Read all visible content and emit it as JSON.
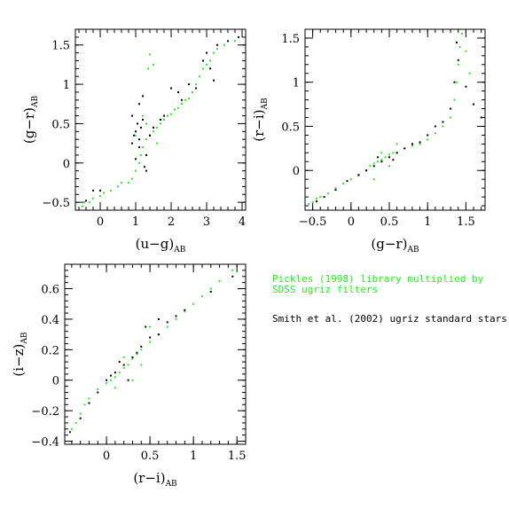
{
  "colors": {
    "pickles": "#22ee22",
    "smith": "#000000"
  },
  "legend": {
    "pickles_line1": "Pickles (1998) library multiplied by",
    "pickles_line2": "SDSS ugriz filters",
    "smith": "Smith et al. (2002) ugriz standard stars"
  },
  "chart_data": [
    {
      "type": "scatter",
      "xlabel": "(u−g)",
      "xlabel_sub": "AB",
      "ylabel": "(g−r)",
      "ylabel_sub": "AB",
      "xlim": [
        -0.7,
        4.1
      ],
      "ylim": [
        -0.6,
        1.7
      ],
      "xticks": [
        0,
        1,
        2,
        3,
        4
      ],
      "xtick_labels": [
        "0",
        "1",
        "2",
        "3",
        "4"
      ],
      "yticks": [
        -0.5,
        0,
        0.5,
        1,
        1.5
      ],
      "ytick_labels": [
        "−0.5",
        "0",
        "0.5",
        "1",
        "1.5"
      ],
      "series": [
        {
          "name": "Pickles (1998) library multiplied by SDSS ugriz filters",
          "color": "#22ee22",
          "points": [
            [
              -0.5,
              -0.55
            ],
            [
              -0.45,
              -0.5
            ],
            [
              -0.3,
              -0.5
            ],
            [
              -0.2,
              -0.45
            ],
            [
              0.0,
              -0.42
            ],
            [
              0.1,
              -0.38
            ],
            [
              0.3,
              -0.35
            ],
            [
              0.5,
              -0.3
            ],
            [
              0.6,
              -0.25
            ],
            [
              0.8,
              -0.25
            ],
            [
              0.9,
              -0.2
            ],
            [
              1.0,
              -0.1
            ],
            [
              1.1,
              0.0
            ],
            [
              1.15,
              0.1
            ],
            [
              1.2,
              0.2
            ],
            [
              1.3,
              0.3
            ],
            [
              1.4,
              0.35
            ],
            [
              1.5,
              0.4
            ],
            [
              1.6,
              0.45
            ],
            [
              1.7,
              0.5
            ],
            [
              1.8,
              0.55
            ],
            [
              1.9,
              0.6
            ],
            [
              2.0,
              0.62
            ],
            [
              2.1,
              0.68
            ],
            [
              2.2,
              0.7
            ],
            [
              2.3,
              0.75
            ],
            [
              2.4,
              0.8
            ],
            [
              2.5,
              0.82
            ],
            [
              2.6,
              0.9
            ],
            [
              2.7,
              1.0
            ],
            [
              2.8,
              1.1
            ],
            [
              2.9,
              1.2
            ],
            [
              3.0,
              1.25
            ],
            [
              3.1,
              1.3
            ],
            [
              3.2,
              1.4
            ],
            [
              3.3,
              1.45
            ],
            [
              3.5,
              1.5
            ],
            [
              3.8,
              1.55
            ],
            [
              1.4,
              1.38
            ],
            [
              1.35,
              1.2
            ],
            [
              1.5,
              1.25
            ],
            [
              1.2,
              0.6
            ],
            [
              1.3,
              0.5
            ],
            [
              1.0,
              0.35
            ],
            [
              1.6,
              0.25
            ]
          ]
        },
        {
          "name": "Smith et al. (2002) ugriz standard stars",
          "color": "#000000",
          "points": [
            [
              -0.4,
              -0.48
            ],
            [
              -0.2,
              -0.35
            ],
            [
              0.0,
              -0.35
            ],
            [
              0.9,
              0.25
            ],
            [
              0.95,
              0.35
            ],
            [
              1.0,
              0.4
            ],
            [
              1.05,
              0.5
            ],
            [
              1.1,
              0.3
            ],
            [
              1.15,
              0.45
            ],
            [
              1.2,
              0.55
            ],
            [
              0.9,
              0.6
            ],
            [
              1.1,
              0.75
            ],
            [
              1.2,
              0.85
            ],
            [
              1.3,
              0.1
            ],
            [
              1.25,
              -0.05
            ],
            [
              1.3,
              -0.1
            ],
            [
              1.1,
              0.2
            ],
            [
              1.4,
              0.35
            ],
            [
              2.0,
              0.95
            ],
            [
              2.2,
              0.9
            ],
            [
              2.5,
              1.0
            ],
            [
              2.7,
              0.95
            ],
            [
              2.9,
              1.3
            ],
            [
              3.0,
              1.4
            ],
            [
              3.1,
              1.2
            ],
            [
              3.3,
              1.5
            ],
            [
              3.6,
              1.55
            ],
            [
              3.9,
              1.6
            ],
            [
              1.0,
              0.05
            ],
            [
              1.5,
              0.45
            ],
            [
              1.7,
              0.55
            ],
            [
              1.8,
              0.6
            ],
            [
              2.3,
              0.8
            ],
            [
              3.2,
              1.05
            ]
          ]
        }
      ]
    },
    {
      "type": "scatter",
      "xlabel": "(g−r)",
      "xlabel_sub": "AB",
      "ylabel": "(r−i)",
      "ylabel_sub": "AB",
      "xlim": [
        -0.6,
        1.75
      ],
      "ylim": [
        -0.45,
        1.6
      ],
      "xticks": [
        -0.5,
        0,
        0.5,
        1,
        1.5
      ],
      "xtick_labels": [
        "−0.5",
        "0",
        "0.5",
        "1",
        "1.5"
      ],
      "yticks": [
        0,
        0.5,
        1,
        1.5
      ],
      "ytick_labels": [
        "0",
        "0.5",
        "1",
        "1.5"
      ],
      "series": [
        {
          "name": "Pickles (1998) library multiplied by SDSS ugriz filters",
          "color": "#22ee22",
          "points": [
            [
              -0.55,
              -0.38
            ],
            [
              -0.5,
              -0.36
            ],
            [
              -0.45,
              -0.32
            ],
            [
              -0.4,
              -0.3
            ],
            [
              -0.3,
              -0.26
            ],
            [
              -0.2,
              -0.2
            ],
            [
              -0.1,
              -0.15
            ],
            [
              0.0,
              -0.1
            ],
            [
              0.1,
              -0.06
            ],
            [
              0.2,
              0.0
            ],
            [
              0.25,
              0.05
            ],
            [
              0.3,
              0.08
            ],
            [
              0.35,
              0.1
            ],
            [
              0.4,
              0.12
            ],
            [
              0.45,
              0.15
            ],
            [
              0.5,
              0.18
            ],
            [
              0.55,
              0.2
            ],
            [
              0.6,
              0.2
            ],
            [
              0.7,
              0.25
            ],
            [
              0.8,
              0.28
            ],
            [
              0.9,
              0.3
            ],
            [
              1.0,
              0.35
            ],
            [
              1.1,
              0.42
            ],
            [
              1.2,
              0.5
            ],
            [
              1.3,
              0.6
            ],
            [
              1.35,
              0.8
            ],
            [
              1.38,
              1.0
            ],
            [
              1.4,
              1.2
            ],
            [
              1.42,
              1.4
            ],
            [
              1.45,
              1.55
            ],
            [
              1.5,
              1.35
            ],
            [
              1.55,
              1.1
            ],
            [
              0.4,
              0.2
            ],
            [
              0.5,
              0.05
            ],
            [
              0.6,
              0.3
            ],
            [
              0.3,
              -0.1
            ]
          ]
        },
        {
          "name": "Smith et al. (2002) ugriz standard stars",
          "color": "#000000",
          "points": [
            [
              -0.45,
              -0.35
            ],
            [
              -0.35,
              -0.3
            ],
            [
              -0.2,
              -0.22
            ],
            [
              -0.05,
              -0.12
            ],
            [
              0.1,
              -0.05
            ],
            [
              0.2,
              0.0
            ],
            [
              0.3,
              0.05
            ],
            [
              0.4,
              0.1
            ],
            [
              0.5,
              0.15
            ],
            [
              0.6,
              0.2
            ],
            [
              0.7,
              0.25
            ],
            [
              0.8,
              0.3
            ],
            [
              0.9,
              0.32
            ],
            [
              1.0,
              0.4
            ],
            [
              1.1,
              0.5
            ],
            [
              1.2,
              0.55
            ],
            [
              1.3,
              0.7
            ],
            [
              1.35,
              1.0
            ],
            [
              1.4,
              1.25
            ],
            [
              1.38,
              1.45
            ],
            [
              1.5,
              0.95
            ],
            [
              1.6,
              0.75
            ],
            [
              1.7,
              0.6
            ],
            [
              0.35,
              0.15
            ],
            [
              0.55,
              0.12
            ]
          ]
        }
      ]
    },
    {
      "type": "scatter",
      "xlabel": "(r−i)",
      "xlabel_sub": "AB",
      "ylabel": "(i−z)",
      "ylabel_sub": "AB",
      "xlim": [
        -0.48,
        1.6
      ],
      "ylim": [
        -0.42,
        0.76
      ],
      "xticks": [
        0,
        0.5,
        1,
        1.5
      ],
      "xtick_labels": [
        "0",
        "0.5",
        "1",
        "1.5"
      ],
      "yticks": [
        -0.4,
        -0.2,
        0,
        0.2,
        0.4,
        0.6
      ],
      "ytick_labels": [
        "−0.4",
        "−0.2",
        "0",
        "0.2",
        "0.4",
        "0.6"
      ],
      "series": [
        {
          "name": "Pickles (1998) library multiplied by SDSS ugriz filters",
          "color": "#22ee22",
          "points": [
            [
              -0.4,
              -0.32
            ],
            [
              -0.35,
              -0.28
            ],
            [
              -0.3,
              -0.22
            ],
            [
              -0.25,
              -0.16
            ],
            [
              -0.2,
              -0.12
            ],
            [
              -0.1,
              -0.06
            ],
            [
              0.0,
              -0.02
            ],
            [
              0.05,
              0.0
            ],
            [
              0.1,
              0.02
            ],
            [
              0.15,
              0.05
            ],
            [
              0.2,
              0.08
            ],
            [
              0.25,
              0.1
            ],
            [
              0.3,
              0.14
            ],
            [
              0.35,
              0.17
            ],
            [
              0.4,
              0.2
            ],
            [
              0.5,
              0.25
            ],
            [
              0.6,
              0.3
            ],
            [
              0.7,
              0.35
            ],
            [
              0.8,
              0.4
            ],
            [
              0.9,
              0.45
            ],
            [
              1.0,
              0.5
            ],
            [
              1.1,
              0.55
            ],
            [
              1.2,
              0.6
            ],
            [
              1.3,
              0.65
            ],
            [
              1.45,
              0.72
            ],
            [
              0.3,
              0.0
            ],
            [
              0.4,
              0.1
            ],
            [
              0.1,
              -0.05
            ],
            [
              0.5,
              0.35
            ],
            [
              0.2,
              0.15
            ]
          ]
        },
        {
          "name": "Smith et al. (2002) ugriz standard stars",
          "color": "#000000",
          "points": [
            [
              -0.42,
              -0.34
            ],
            [
              -0.3,
              -0.25
            ],
            [
              -0.2,
              -0.15
            ],
            [
              -0.1,
              -0.08
            ],
            [
              0.0,
              0.0
            ],
            [
              0.05,
              0.03
            ],
            [
              0.1,
              0.05
            ],
            [
              0.2,
              0.1
            ],
            [
              0.3,
              0.15
            ],
            [
              0.35,
              0.18
            ],
            [
              0.4,
              0.22
            ],
            [
              0.5,
              0.28
            ],
            [
              0.6,
              0.3
            ],
            [
              0.7,
              0.38
            ],
            [
              0.8,
              0.42
            ],
            [
              0.9,
              0.46
            ],
            [
              1.2,
              0.58
            ],
            [
              1.45,
              0.68
            ],
            [
              0.25,
              0.0
            ],
            [
              0.45,
              0.35
            ],
            [
              0.6,
              0.4
            ],
            [
              0.15,
              0.12
            ]
          ]
        }
      ]
    }
  ]
}
